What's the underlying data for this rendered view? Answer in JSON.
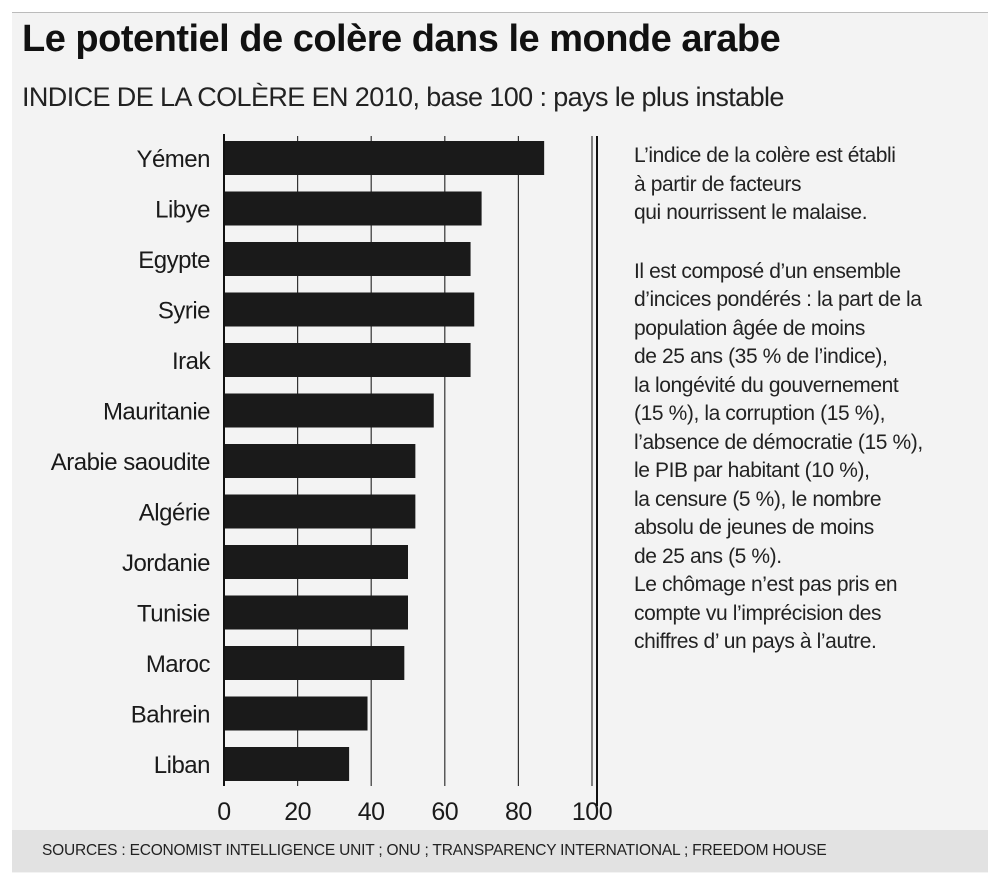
{
  "chart_data": {
    "type": "bar",
    "orientation": "horizontal",
    "title": "Le potentiel de colère dans le monde arabe",
    "subtitle": "INDICE DE LA COLÈRE EN 2010, base 100 : pays le plus instable",
    "categories": [
      "Yémen",
      "Libye",
      "Egypte",
      "Syrie",
      "Irak",
      "Mauritanie",
      "Arabie saoudite",
      "Algérie",
      "Jordanie",
      "Tunisie",
      "Maroc",
      "Bahrein",
      "Liban"
    ],
    "values": [
      87,
      70,
      67,
      68,
      67,
      57,
      52,
      52,
      50,
      50,
      49,
      39,
      34
    ],
    "xlim": [
      0,
      100
    ],
    "xticks": [
      0,
      20,
      40,
      60,
      80,
      100
    ],
    "grid": "vertical",
    "bar_color": "#1a1a1a"
  },
  "note": {
    "paragraphs": [
      "L’indice de la colère est établi\nà partir de facteurs\nqui nourrissent le malaise.",
      "Il est composé d’un ensemble\nd’incices pondérés : la part de la\npopulation âgée de moins\nde 25 ans (35 % de l’indice),\nla longévité du gouvernement\n(15 %), la corruption (15 %),\nl’absence  de démocratie (15 %),\nle PIB par habitant (10 %),\nla censure (5 %),  le nombre\nabsolu de jeunes de moins\nde 25 ans (5 %).\nLe chômage n’est pas pris en\ncompte vu l’imprécision des\nchiffres d’ un pays à l’autre."
    ]
  },
  "sources": "SOURCES : ECONOMIST INTELLIGENCE UNIT ; ONU ; TRANSPARENCY INTERNATIONAL ; FREEDOM HOUSE"
}
